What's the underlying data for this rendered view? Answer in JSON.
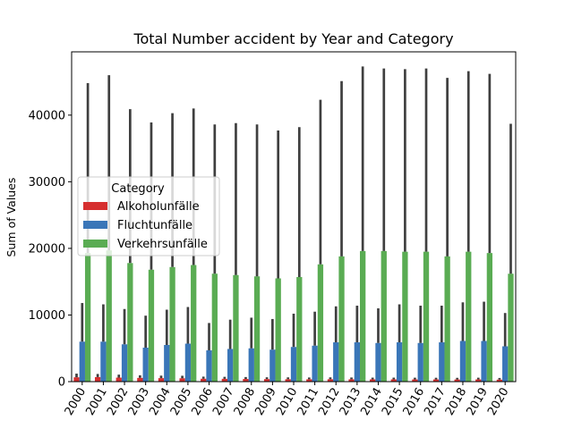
{
  "chart_data": {
    "type": "bar",
    "title": "Total Number accident  by Year and Category",
    "xlabel": "",
    "ylabel": "Sum of Values",
    "ylim": [
      0,
      49500
    ],
    "yticks": [
      "0",
      "10000",
      "20000",
      "30000",
      "40000"
    ],
    "grid": false,
    "legend_position": "center-left",
    "legend_title": "Category",
    "categories": [
      "2000",
      "2001",
      "2002",
      "2003",
      "2004",
      "2005",
      "2006",
      "2007",
      "2008",
      "2009",
      "2010",
      "2011",
      "2012",
      "2013",
      "2014",
      "2015",
      "2016",
      "2017",
      "2018",
      "2019",
      "2020"
    ],
    "series": [
      {
        "name": "Alkoholunfälle",
        "color": "#d62f2f",
        "values": [
          650,
          680,
          600,
          560,
          520,
          500,
          430,
          420,
          400,
          380,
          360,
          350,
          360,
          350,
          340,
          340,
          330,
          330,
          320,
          330,
          300
        ],
        "ci_upper": [
          1200,
          1150,
          1050,
          950,
          900,
          880,
          750,
          720,
          690,
          650,
          640,
          620,
          640,
          620,
          600,
          600,
          590,
          580,
          570,
          590,
          550
        ]
      },
      {
        "name": "Fluchtunfälle",
        "color": "#3a76b8",
        "values": [
          6000,
          6000,
          5600,
          5100,
          5500,
          5700,
          4700,
          4900,
          5000,
          4800,
          5200,
          5400,
          5900,
          5900,
          5800,
          5900,
          5800,
          5900,
          6100,
          6100,
          5300
        ],
        "ci_upper": [
          11800,
          11600,
          10900,
          9900,
          10800,
          11200,
          8800,
          9300,
          9600,
          9400,
          10200,
          10500,
          11300,
          11400,
          11000,
          11600,
          11400,
          11400,
          11900,
          12000,
          10300
        ]
      },
      {
        "name": "Verkehrsunfälle",
        "color": "#5aac53",
        "values": [
          19300,
          19700,
          17800,
          16800,
          17200,
          17500,
          16200,
          16000,
          15800,
          15500,
          15700,
          17600,
          18800,
          19600,
          19600,
          19500,
          19500,
          18800,
          19500,
          19300,
          16200
        ],
        "ci_upper": [
          44800,
          46000,
          40900,
          38900,
          40300,
          41000,
          38600,
          38800,
          38600,
          37700,
          38200,
          42300,
          45100,
          47300,
          47000,
          46900,
          47000,
          45600,
          46600,
          46200,
          38700
        ]
      }
    ]
  }
}
